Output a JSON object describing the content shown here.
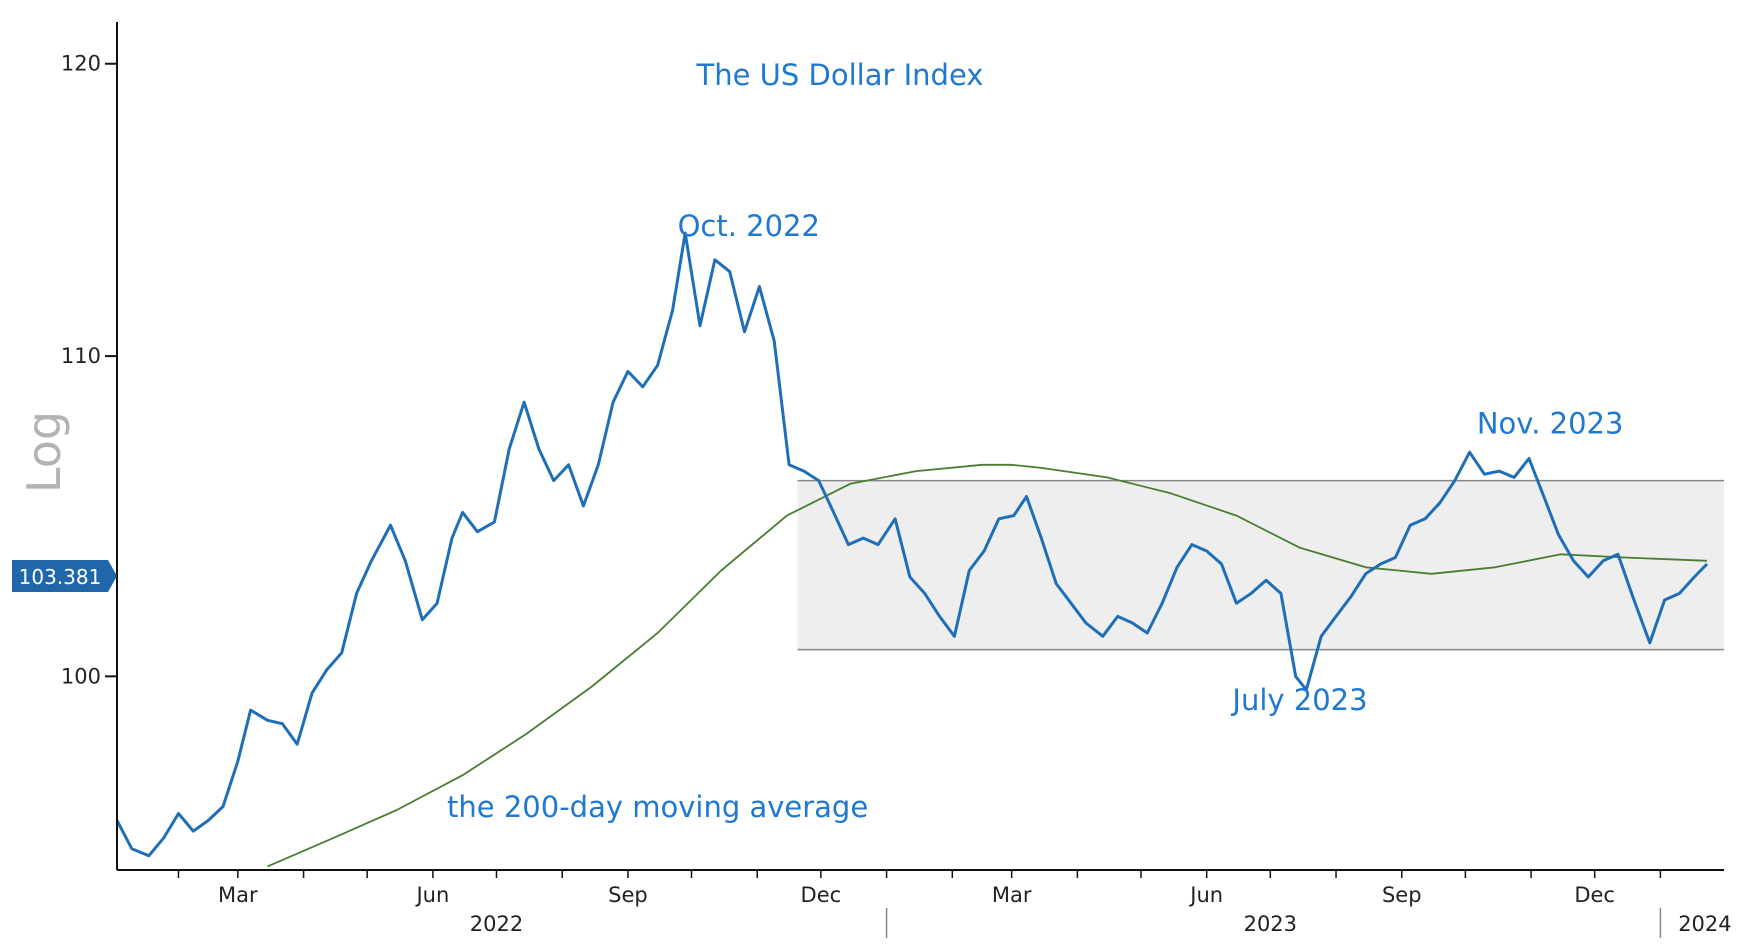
{
  "chart_data": {
    "type": "line",
    "title": "The US Dollar Index",
    "ylabel": "Log",
    "y_scale": "log",
    "ylim": [
      94.4,
      121.5
    ],
    "xlim": [
      "2022-01-03",
      "2024-01-31"
    ],
    "y_ticks": [
      100,
      110,
      120
    ],
    "y_tick_labels": [
      "100",
      "110",
      "120"
    ],
    "x_month_labels": [
      {
        "date": "2022-03-01",
        "label": "Mar"
      },
      {
        "date": "2022-06-01",
        "label": "Jun"
      },
      {
        "date": "2022-09-01",
        "label": "Sep"
      },
      {
        "date": "2022-12-01",
        "label": "Dec"
      },
      {
        "date": "2023-03-01",
        "label": "Mar"
      },
      {
        "date": "2023-06-01",
        "label": "Jun"
      },
      {
        "date": "2023-09-01",
        "label": "Sep"
      },
      {
        "date": "2023-12-01",
        "label": "Dec"
      }
    ],
    "x_year_labels": [
      {
        "date": "2022-07-01",
        "label": "2022"
      },
      {
        "date": "2023-07-01",
        "label": "2023"
      },
      {
        "date": "2024-01-22",
        "label": "2024"
      }
    ],
    "year_separators": [
      "2023-01-01",
      "2024-01-01"
    ],
    "last_value_label": "103.381",
    "last_value": 103.381,
    "range_box": {
      "x": [
        "2022-11-20",
        "2024-01-31"
      ],
      "y": [
        100.8,
        106.0
      ]
    },
    "series": [
      {
        "name": "The US Dollar Index",
        "color": "#1f6fb8",
        "points": [
          [
            "2022-01-03",
            95.8
          ],
          [
            "2022-01-10",
            95.0
          ],
          [
            "2022-01-18",
            94.8
          ],
          [
            "2022-01-25",
            95.3
          ],
          [
            "2022-02-01",
            96.0
          ],
          [
            "2022-02-08",
            95.5
          ],
          [
            "2022-02-15",
            95.8
          ],
          [
            "2022-02-22",
            96.2
          ],
          [
            "2022-03-01",
            97.5
          ],
          [
            "2022-03-07",
            99.0
          ],
          [
            "2022-03-15",
            98.7
          ],
          [
            "2022-03-22",
            98.6
          ],
          [
            "2022-03-29",
            98.0
          ],
          [
            "2022-04-05",
            99.5
          ],
          [
            "2022-04-12",
            100.2
          ],
          [
            "2022-04-19",
            100.7
          ],
          [
            "2022-04-26",
            102.5
          ],
          [
            "2022-05-03",
            103.5
          ],
          [
            "2022-05-12",
            104.6
          ],
          [
            "2022-05-19",
            103.5
          ],
          [
            "2022-05-27",
            101.7
          ],
          [
            "2022-06-03",
            102.2
          ],
          [
            "2022-06-10",
            104.2
          ],
          [
            "2022-06-15",
            105.0
          ],
          [
            "2022-06-22",
            104.4
          ],
          [
            "2022-06-30",
            104.7
          ],
          [
            "2022-07-07",
            107.0
          ],
          [
            "2022-07-14",
            108.5
          ],
          [
            "2022-07-21",
            107.0
          ],
          [
            "2022-07-28",
            106.0
          ],
          [
            "2022-08-04",
            106.5
          ],
          [
            "2022-08-11",
            105.2
          ],
          [
            "2022-08-18",
            106.5
          ],
          [
            "2022-08-25",
            108.5
          ],
          [
            "2022-09-01",
            109.5
          ],
          [
            "2022-09-08",
            109.0
          ],
          [
            "2022-09-15",
            109.7
          ],
          [
            "2022-09-22",
            111.5
          ],
          [
            "2022-09-28",
            114.1
          ],
          [
            "2022-10-05",
            111.0
          ],
          [
            "2022-10-12",
            113.2
          ],
          [
            "2022-10-19",
            112.8
          ],
          [
            "2022-10-26",
            110.8
          ],
          [
            "2022-11-02",
            112.3
          ],
          [
            "2022-11-09",
            110.5
          ],
          [
            "2022-11-16",
            106.5
          ],
          [
            "2022-11-23",
            106.3
          ],
          [
            "2022-11-30",
            106.0
          ],
          [
            "2022-12-07",
            105.0
          ],
          [
            "2022-12-14",
            104.0
          ],
          [
            "2022-12-21",
            104.2
          ],
          [
            "2022-12-28",
            104.0
          ],
          [
            "2023-01-05",
            104.8
          ],
          [
            "2023-01-12",
            103.0
          ],
          [
            "2023-01-19",
            102.5
          ],
          [
            "2023-01-26",
            101.8
          ],
          [
            "2023-02-02",
            101.2
          ],
          [
            "2023-02-09",
            103.2
          ],
          [
            "2023-02-16",
            103.8
          ],
          [
            "2023-02-23",
            104.8
          ],
          [
            "2023-03-02",
            104.9
          ],
          [
            "2023-03-08",
            105.5
          ],
          [
            "2023-03-15",
            104.2
          ],
          [
            "2023-03-22",
            102.8
          ],
          [
            "2023-03-29",
            102.2
          ],
          [
            "2023-04-05",
            101.6
          ],
          [
            "2023-04-13",
            101.2
          ],
          [
            "2023-04-20",
            101.8
          ],
          [
            "2023-04-27",
            101.6
          ],
          [
            "2023-05-04",
            101.3
          ],
          [
            "2023-05-11",
            102.2
          ],
          [
            "2023-05-18",
            103.3
          ],
          [
            "2023-05-25",
            104.0
          ],
          [
            "2023-06-01",
            103.8
          ],
          [
            "2023-06-08",
            103.4
          ],
          [
            "2023-06-15",
            102.2
          ],
          [
            "2023-06-22",
            102.5
          ],
          [
            "2023-06-29",
            102.9
          ],
          [
            "2023-07-06",
            102.5
          ],
          [
            "2023-07-13",
            100.0
          ],
          [
            "2023-07-18",
            99.6
          ],
          [
            "2023-07-25",
            101.2
          ],
          [
            "2023-08-01",
            101.8
          ],
          [
            "2023-08-08",
            102.4
          ],
          [
            "2023-08-15",
            103.1
          ],
          [
            "2023-08-22",
            103.4
          ],
          [
            "2023-08-29",
            103.6
          ],
          [
            "2023-09-05",
            104.6
          ],
          [
            "2023-09-12",
            104.8
          ],
          [
            "2023-09-19",
            105.3
          ],
          [
            "2023-09-26",
            106.0
          ],
          [
            "2023-10-03",
            106.9
          ],
          [
            "2023-10-10",
            106.2
          ],
          [
            "2023-10-17",
            106.3
          ],
          [
            "2023-10-24",
            106.1
          ],
          [
            "2023-10-31",
            106.7
          ],
          [
            "2023-11-07",
            105.5
          ],
          [
            "2023-11-14",
            104.3
          ],
          [
            "2023-11-21",
            103.5
          ],
          [
            "2023-11-28",
            103.0
          ],
          [
            "2023-12-05",
            103.5
          ],
          [
            "2023-12-12",
            103.7
          ],
          [
            "2023-12-19",
            102.4
          ],
          [
            "2023-12-27",
            101.0
          ],
          [
            "2024-01-03",
            102.3
          ],
          [
            "2024-01-10",
            102.5
          ],
          [
            "2024-01-17",
            103.0
          ],
          [
            "2024-01-23",
            103.4
          ]
        ]
      },
      {
        "name": "the 200-day moving average",
        "color": "#4a7d32",
        "points": [
          [
            "2022-03-15",
            94.5
          ],
          [
            "2022-04-15",
            95.3
          ],
          [
            "2022-05-15",
            96.1
          ],
          [
            "2022-06-15",
            97.1
          ],
          [
            "2022-07-15",
            98.3
          ],
          [
            "2022-08-15",
            99.7
          ],
          [
            "2022-09-15",
            101.3
          ],
          [
            "2022-10-15",
            103.2
          ],
          [
            "2022-11-15",
            104.9
          ],
          [
            "2022-12-15",
            105.9
          ],
          [
            "2023-01-15",
            106.3
          ],
          [
            "2023-02-15",
            106.5
          ],
          [
            "2023-03-01",
            106.5
          ],
          [
            "2023-03-15",
            106.4
          ],
          [
            "2023-04-15",
            106.1
          ],
          [
            "2023-05-15",
            105.6
          ],
          [
            "2023-06-15",
            104.9
          ],
          [
            "2023-07-15",
            103.9
          ],
          [
            "2023-08-15",
            103.3
          ],
          [
            "2023-09-15",
            103.1
          ],
          [
            "2023-10-15",
            103.3
          ],
          [
            "2023-11-15",
            103.7
          ],
          [
            "2023-12-15",
            103.6
          ],
          [
            "2024-01-23",
            103.5
          ]
        ]
      }
    ],
    "annotations": [
      {
        "text": "Oct. 2022",
        "date": "2022-10-28",
        "y": 114.0
      },
      {
        "text": "Nov. 2023",
        "date": "2023-11-10",
        "y": 107.5
      },
      {
        "text": "July 2023",
        "date": "2023-07-15",
        "y": 99.0
      },
      {
        "text": "the 200-day moving average",
        "date": "2022-09-15",
        "y": 95.9
      }
    ]
  }
}
